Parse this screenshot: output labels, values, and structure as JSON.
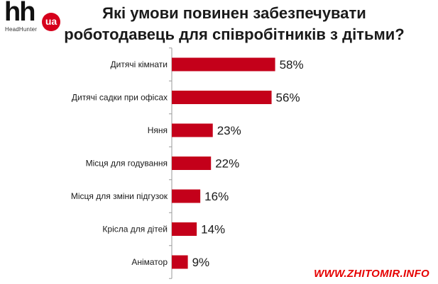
{
  "logo": {
    "mark": "hh",
    "badge": "ua",
    "subtitle": "HeadHunter",
    "badge_color": "#d6001c"
  },
  "title": {
    "line1": "Які умови повинен забезпечувати",
    "line2": "роботодавець для співробітників з дітьми?"
  },
  "chart_data": {
    "type": "bar",
    "orientation": "horizontal",
    "categories": [
      "Дитячі кімнати",
      "Дитячі садки при офісах",
      "Няня",
      "Місця для годування",
      "Місця для зміни підгузок",
      "Крісла для дітей",
      "Аніматор"
    ],
    "values": [
      58,
      56,
      23,
      22,
      16,
      14,
      9
    ],
    "value_labels": [
      "58%",
      "56%",
      "23%",
      "22%",
      "16%",
      "14%",
      "9%"
    ],
    "xlim": [
      0,
      100
    ],
    "grid": false,
    "bar_color": "#c4001a"
  },
  "watermark": "WWW.ZHITOMIR.INFO"
}
